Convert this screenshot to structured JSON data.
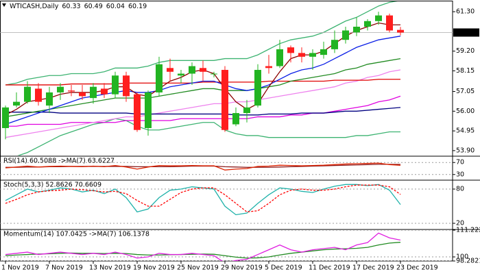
{
  "chart_data": [
    {
      "type": "candlestick",
      "title": "WTICASH,Daily",
      "categories": [
        "1 Nov 2019",
        null,
        null,
        null,
        "7 Nov 2019",
        null,
        null,
        null,
        "13 Nov 2019",
        null,
        null,
        null,
        "19 Nov 2019",
        null,
        null,
        null,
        "25 Nov 2019",
        null,
        null,
        null,
        "29 Nov 2019",
        null,
        null,
        null,
        "5 Dec 2019",
        null,
        null,
        null,
        "11 Dec 2019",
        null,
        null,
        null,
        "17 Dec 2019",
        null,
        null,
        null,
        "23 Dec 2019"
      ],
      "open": [
        55.1,
        56.3,
        56.5,
        57.2,
        56.3,
        57.0,
        57.1,
        57.0,
        56.7,
        57.2,
        56.9,
        57.9,
        56.9,
        55.1,
        57.0,
        58.3,
        57.9,
        58.0,
        58.3,
        58.0,
        58.2,
        55.3,
        55.9,
        56.3,
        58.4,
        58.4,
        59.4,
        59.1,
        58.9,
        59.0,
        59.3,
        59.8,
        60.2,
        60.5,
        60.8,
        61.1,
        60.33
      ],
      "high": [
        56.3,
        57.0,
        57.6,
        57.5,
        57.3,
        57.5,
        57.4,
        57.4,
        57.5,
        57.5,
        58.1,
        58.1,
        57.0,
        57.1,
        58.9,
        58.8,
        58.2,
        58.6,
        58.7,
        58.1,
        58.4,
        56.2,
        56.6,
        58.5,
        59.0,
        59.8,
        59.5,
        59.4,
        59.3,
        59.7,
        60.3,
        60.5,
        61.0,
        60.9,
        61.3,
        61.2,
        60.49
      ],
      "low": [
        54.5,
        56.2,
        56.4,
        56.3,
        55.9,
        56.6,
        56.8,
        56.6,
        56.4,
        56.7,
        56.7,
        56.5,
        54.9,
        54.7,
        56.8,
        57.6,
        57.5,
        57.4,
        57.6,
        57.8,
        54.9,
        55.2,
        55.4,
        56.2,
        58.0,
        58.3,
        58.6,
        58.6,
        58.2,
        58.8,
        59.1,
        59.6,
        60.0,
        60.3,
        60.6,
        60.2,
        60.04
      ],
      "close": [
        56.2,
        56.5,
        57.3,
        56.5,
        57.0,
        57.3,
        57.05,
        56.8,
        57.3,
        56.9,
        57.9,
        56.8,
        55.0,
        57.0,
        58.5,
        58.1,
        58.0,
        58.4,
        58.1,
        58.0,
        55.0,
        55.9,
        56.2,
        58.2,
        58.3,
        59.3,
        59.1,
        58.9,
        59.1,
        59.3,
        59.8,
        60.3,
        60.5,
        60.8,
        61.1,
        60.3,
        60.19
      ],
      "up_color": "#22b422",
      "down_color": "#ff1e1e",
      "lines": [
        {
          "color": "#3cb371",
          "values": [
            57.4,
            57.5,
            57.7,
            57.8,
            57.9,
            57.9,
            58.0,
            58.0,
            58.0,
            58.1,
            58.3,
            58.3,
            58.3,
            58.4,
            58.6,
            58.7,
            58.7,
            58.7,
            58.7,
            58.7,
            58.8,
            58.8,
            58.8,
            59.0,
            59.3,
            59.6,
            59.8,
            59.9,
            60.0,
            60.2,
            60.5,
            60.8,
            61.0,
            61.3,
            61.6,
            61.8,
            61.9
          ]
        },
        {
          "color": "#3cb371",
          "values": [
            53.4,
            53.6,
            53.8,
            54.1,
            54.4,
            54.7,
            54.9,
            55.1,
            55.3,
            55.4,
            55.6,
            55.5,
            55.2,
            55.0,
            55.0,
            55.1,
            55.2,
            55.3,
            55.4,
            55.4,
            55.0,
            54.8,
            54.7,
            54.7,
            54.6,
            54.6,
            54.6,
            54.6,
            54.6,
            54.6,
            54.6,
            54.6,
            54.7,
            54.7,
            54.8,
            54.9,
            54.9
          ]
        },
        {
          "color": "#e000e0",
          "values": [
            55.2,
            55.2,
            55.3,
            55.3,
            55.3,
            55.3,
            55.4,
            55.4,
            55.4,
            55.4,
            55.4,
            55.5,
            55.5,
            55.5,
            55.5,
            55.5,
            55.6,
            55.6,
            55.6,
            55.6,
            55.6,
            55.6,
            55.6,
            55.7,
            55.7,
            55.7,
            55.8,
            55.8,
            55.9,
            55.9,
            56.0,
            56.1,
            56.2,
            56.3,
            56.5,
            56.6,
            56.8
          ]
        },
        {
          "color": "#ee82ee",
          "values": [
            54.6,
            54.7,
            54.8,
            54.9,
            55.0,
            55.1,
            55.2,
            55.3,
            55.4,
            55.5,
            55.6,
            55.7,
            55.7,
            55.8,
            55.9,
            56.0,
            56.1,
            56.2,
            56.3,
            56.4,
            56.4,
            56.5,
            56.5,
            56.6,
            56.7,
            56.8,
            56.9,
            57.0,
            57.1,
            57.2,
            57.3,
            57.5,
            57.6,
            57.8,
            57.9,
            58.1,
            58.2
          ]
        },
        {
          "color": "#000080",
          "values": [
            55.95,
            55.95,
            55.95,
            55.95,
            55.95,
            55.9,
            55.9,
            55.9,
            55.9,
            55.9,
            55.9,
            55.9,
            55.85,
            55.85,
            55.85,
            55.85,
            55.85,
            55.85,
            55.85,
            55.85,
            55.85,
            55.8,
            55.8,
            55.8,
            55.85,
            55.85,
            55.85,
            55.9,
            55.9,
            55.9,
            55.95,
            56.0,
            56.0,
            56.05,
            56.1,
            56.15,
            56.2
          ]
        },
        {
          "color": "#e00000",
          "values": [
            57.4,
            57.4,
            57.4,
            57.4,
            57.4,
            57.4,
            57.45,
            57.45,
            57.45,
            57.45,
            57.45,
            57.5,
            57.5,
            57.5,
            57.5,
            57.5,
            57.5,
            57.5,
            57.55,
            57.55,
            57.55,
            57.55,
            57.55,
            57.55,
            57.6,
            57.6,
            57.6,
            57.6,
            57.6,
            57.6,
            57.65,
            57.65,
            57.65,
            57.65,
            57.7,
            57.7,
            57.7
          ]
        },
        {
          "color": "#228b22",
          "values": [
            55.7,
            55.8,
            55.9,
            56.0,
            56.1,
            56.2,
            56.3,
            56.4,
            56.5,
            56.6,
            56.7,
            56.7,
            56.7,
            56.7,
            56.8,
            56.9,
            57.0,
            57.1,
            57.2,
            57.2,
            57.1,
            57.1,
            57.1,
            57.2,
            57.3,
            57.4,
            57.6,
            57.7,
            57.8,
            57.9,
            58.0,
            58.2,
            58.3,
            58.5,
            58.6,
            58.7,
            58.8
          ]
        },
        {
          "color": "#0a1ee6",
          "values": [
            55.3,
            55.5,
            55.7,
            55.9,
            56.1,
            56.3,
            56.5,
            56.7,
            56.8,
            56.9,
            57.0,
            57.1,
            57.0,
            57.0,
            57.1,
            57.3,
            57.4,
            57.5,
            57.6,
            57.6,
            57.4,
            57.2,
            57.1,
            57.2,
            57.4,
            57.7,
            58.0,
            58.2,
            58.3,
            58.5,
            58.8,
            59.1,
            59.4,
            59.6,
            59.8,
            59.9,
            60.0
          ]
        },
        {
          "color": "#8b0000",
          "values": [
            55.8,
            56.1,
            56.5,
            56.6,
            56.7,
            56.9,
            57.0,
            57.0,
            57.0,
            57.1,
            57.3,
            57.3,
            56.9,
            56.8,
            57.2,
            57.6,
            57.8,
            58.1,
            58.2,
            58.0,
            57.2,
            56.5,
            56.1,
            56.4,
            57.3,
            58.1,
            58.8,
            59.0,
            59.0,
            59.2,
            59.6,
            60.0,
            60.3,
            60.5,
            60.7,
            60.6,
            60.6
          ]
        }
      ],
      "last_price_line": true,
      "ylim": [
        53.64,
        61.85
      ],
      "yticks": [
        {
          "value": 61.3,
          "label": "61.30"
        },
        {
          "value": 59.2,
          "label": "59.20"
        },
        58.15,
        57.05,
        {
          "value": 56.0,
          "label": "56.00"
        },
        54.95,
        {
          "value": 53.9,
          "label": "53.90"
        }
      ],
      "grid": false
    },
    {
      "type": "line",
      "title": "RSI(14) 60.5088 ->MA(7) 63.6227",
      "series": [
        {
          "color": "#8b1a1a",
          "values": [
            54,
            54,
            55,
            55,
            56,
            56,
            57,
            57,
            57,
            57,
            57,
            57,
            56,
            56,
            56,
            56,
            57,
            58,
            58,
            58,
            56,
            55,
            54,
            54,
            54,
            55,
            56,
            57,
            58,
            59,
            60,
            61,
            62,
            63,
            64,
            64,
            63.6227
          ]
        },
        {
          "color": "#dd2200",
          "values": [
            52,
            55,
            58,
            55,
            57,
            58,
            57,
            56,
            58,
            56,
            60,
            55,
            48,
            55,
            60,
            59,
            59,
            60,
            59,
            59,
            45,
            48,
            50,
            57,
            58,
            61,
            60,
            59,
            60,
            61,
            63,
            65,
            66,
            67,
            68,
            63,
            60.5088
          ]
        }
      ],
      "ylim": [
        13.5,
        88.8
      ],
      "yticks": [
        70,
        30
      ],
      "grid": true
    },
    {
      "type": "line",
      "title": "Stoch(5,3,3) 52.8626 70.6609",
      "series": [
        {
          "color": "#20b2aa",
          "values": [
            60,
            70,
            80,
            75,
            78,
            82,
            80,
            75,
            78,
            72,
            80,
            65,
            40,
            45,
            65,
            78,
            80,
            84,
            82,
            80,
            50,
            35,
            38,
            55,
            70,
            82,
            80,
            76,
            74,
            80,
            85,
            88,
            88,
            86,
            88,
            78,
            52.8626
          ]
        },
        {
          "color": "#ff0000",
          "dash": true,
          "values": [
            55,
            62,
            70,
            75,
            77,
            78,
            80,
            79,
            77,
            75,
            76,
            72,
            60,
            50,
            50,
            62,
            74,
            80,
            82,
            82,
            70,
            55,
            40,
            42,
            55,
            70,
            78,
            80,
            78,
            78,
            80,
            84,
            87,
            87,
            87,
            84,
            70.6609
          ]
        }
      ],
      "ylim": [
        10.4,
        94.4
      ],
      "yticks": [
        80,
        20
      ],
      "grid": true
    },
    {
      "type": "line",
      "title": "Momentum(14) 107.0425 ->MA(7) 106.1378",
      "series": [
        {
          "color": "#228b22",
          "values": [
            100.5,
            100.8,
            101,
            101.2,
            101.3,
            101.5,
            101.6,
            101.5,
            101.5,
            101.4,
            101.5,
            101.4,
            101,
            100.8,
            100.8,
            100.9,
            101,
            101.1,
            101.2,
            101.1,
            100.5,
            99.9,
            99.5,
            99.6,
            100,
            100.8,
            101.5,
            102,
            102.5,
            103,
            103.3,
            103.4,
            103.6,
            104,
            105,
            105.8,
            106.1378
          ]
        },
        {
          "color": "#e020e0",
          "values": [
            101,
            101.5,
            102,
            101,
            101.5,
            102,
            101.5,
            101,
            101.5,
            101,
            102,
            101,
            99.5,
            100,
            101.5,
            101,
            101,
            101.5,
            101,
            100.5,
            97.5,
            98.5,
            99,
            101,
            103,
            105,
            103,
            102,
            103,
            103.5,
            104,
            103,
            105,
            106,
            110,
            108,
            107.0425
          ]
        }
      ],
      "ylim": [
        98.2821,
        111.2226
      ],
      "yticks": [
        111.2226,
        100,
        98.2821
      ],
      "grid": true
    }
  ]
}
